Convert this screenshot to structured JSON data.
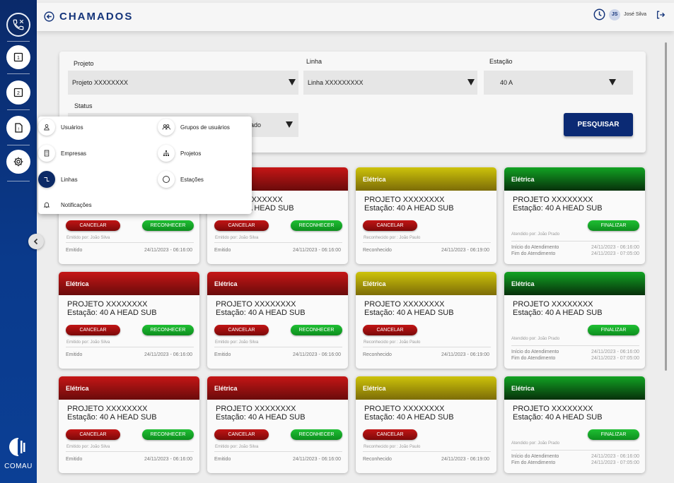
{
  "header": {
    "title": "CHAMADOS",
    "user_initials": "JS",
    "user_name": "José Silva"
  },
  "sidebar": {
    "items": [
      {
        "icon": "phone-icon"
      },
      {
        "icon": "document-1-icon"
      },
      {
        "icon": "document-2-icon"
      },
      {
        "icon": "document-alert-icon"
      },
      {
        "icon": "gear-icon"
      }
    ],
    "logo_text": "COMAU"
  },
  "filters": {
    "projeto": {
      "label": "Projeto",
      "value": "Projeto XXXXXXXX"
    },
    "linha": {
      "label": "Linha",
      "value": "Linha XXXXXXXXX"
    },
    "estacao": {
      "label": "Estação",
      "value": "40 A"
    },
    "status": {
      "label": "Status",
      "value": "ado"
    },
    "search_label": "PESQUISAR"
  },
  "menu": {
    "items": [
      {
        "label": "Usuários",
        "icon": "user-icon"
      },
      {
        "label": "Grupos de usuários",
        "icon": "users-group-icon"
      },
      {
        "label": "Empresas",
        "icon": "building-icon"
      },
      {
        "label": "Projetos",
        "icon": "hierarchy-icon"
      },
      {
        "label": "Linhas",
        "icon": "line-icon"
      },
      {
        "label": "Estações",
        "icon": "circle-icon"
      },
      {
        "label": "Notificações",
        "icon": "bell-icon"
      }
    ]
  },
  "cards": {
    "red": {
      "category": "Elétrica",
      "project": "PROJETO XXXXXXXX",
      "station": "Estação: 40 A HEAD SUB",
      "cancel": "CANCELAR",
      "recognize": "RECONHECER",
      "emitted_by": "Emitido por: João Silva",
      "status": "Emitido",
      "datetime": "24/11/2023 - 06:16:00"
    },
    "yellow": {
      "category": "Elétrica",
      "project": "PROJETO XXXXXXXX",
      "station": "Estação: 40 A HEAD SUB",
      "cancel": "CANCELAR",
      "recognized_by": "Reconhecido por : João Paulo",
      "status": "Reconhecido",
      "datetime": "24/11/2023 - 06:19:00"
    },
    "green": {
      "category": "Elétrica",
      "project": "PROJETO XXXXXXXX",
      "station": "Estação: 40 A HEAD SUB",
      "finish": "FINALIZAR",
      "attended_by": "Atendido por: João Prado",
      "start_label": "Início do Atendimento",
      "start_time": "24/11/2023 - 06:16:00",
      "end_label": "Fim do Atendimento",
      "end_time": "24/11/2023 - 07:05:00"
    },
    "partial": {
      "project_tail": "XXXXXXXX",
      "station_tail": "0 A HEAD SUB"
    }
  }
}
